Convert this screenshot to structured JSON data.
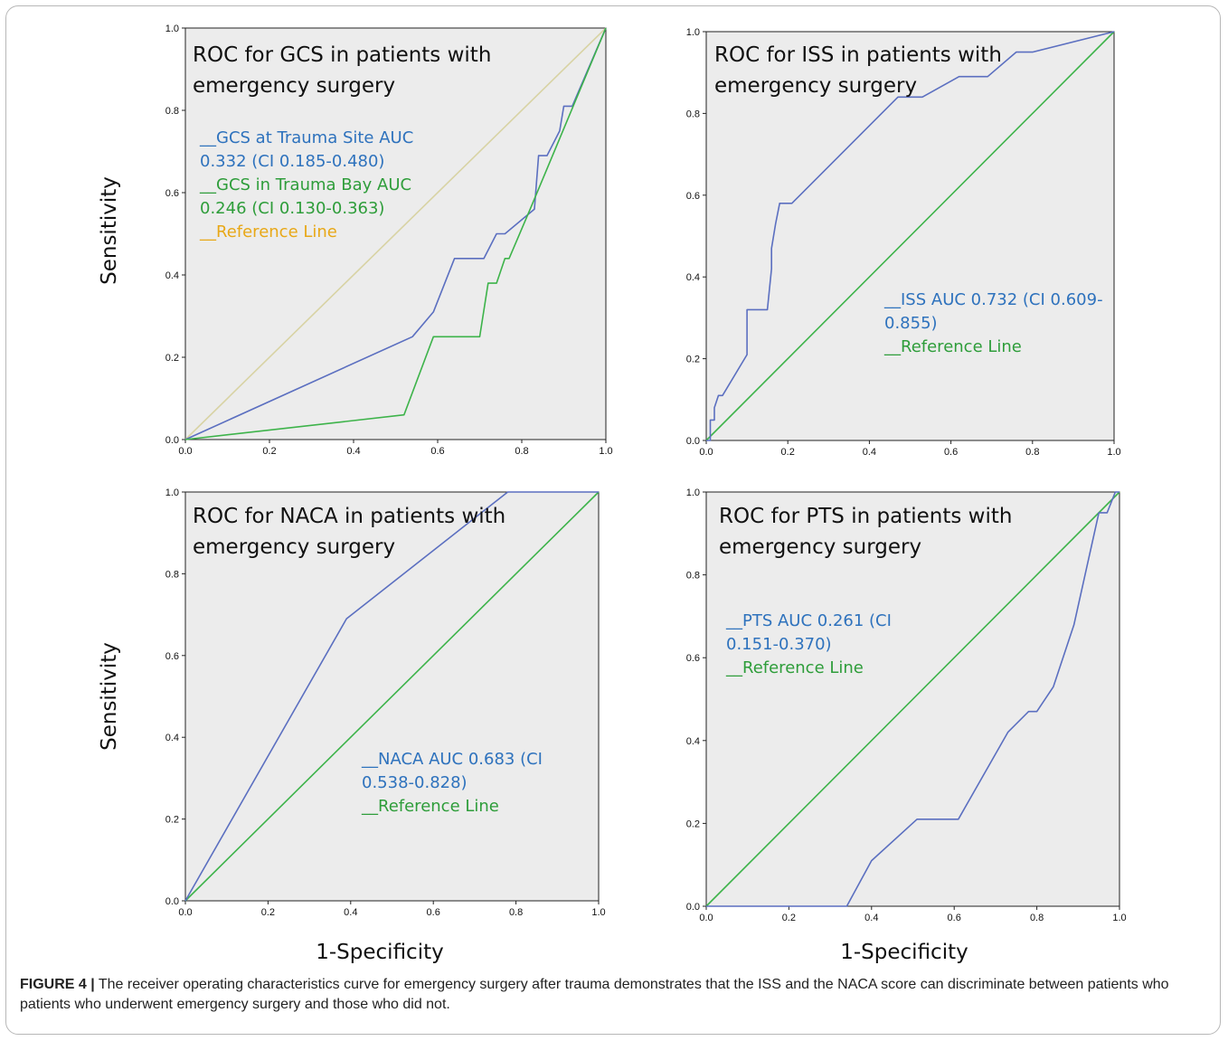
{
  "caption": {
    "label": "FIGURE 4 |",
    "text": "The receiver operating characteristics curve for emergency surgery after trauma demonstrates that the ISS and the NACA score can discriminate between patients who patients who underwent emergency surgery and those who did not."
  },
  "colors": {
    "blue_series": "#5b6fc0",
    "green_series": "#3db34a",
    "reference_beige": "#d8d3a4",
    "legend_blue_text": "#2e72bd",
    "legend_green_text": "#2e9d3a",
    "legend_orange_text": "#e8a817",
    "plot_background": "#ececec"
  },
  "chart_data": [
    {
      "type": "line",
      "title_lines": [
        "ROC for GCS in patients with",
        "emergency surgery"
      ],
      "xlabel": "",
      "ylabel": "Sensitivity",
      "xlim": [
        0,
        1
      ],
      "ylim": [
        0,
        1
      ],
      "xticks": [
        "0.0",
        "0.2",
        "0.4",
        "0.6",
        "0.8",
        "1.0"
      ],
      "yticks": [
        "0.0",
        "0.2",
        "0.4",
        "0.6",
        "0.8",
        "1.0"
      ],
      "grid": false,
      "series": [
        {
          "name": "GCS at Trauma Site",
          "color": "#5b6fc0",
          "points": [
            [
              0,
              0
            ],
            [
              0.54,
              0.25
            ],
            [
              0.59,
              0.31
            ],
            [
              0.64,
              0.44
            ],
            [
              0.71,
              0.44
            ],
            [
              0.74,
              0.5
            ],
            [
              0.76,
              0.5
            ],
            [
              0.83,
              0.56
            ],
            [
              0.84,
              0.69
            ],
            [
              0.86,
              0.69
            ],
            [
              0.89,
              0.75
            ],
            [
              0.9,
              0.81
            ],
            [
              0.92,
              0.81
            ],
            [
              1,
              1
            ]
          ]
        },
        {
          "name": "GCS in Trauma Bay",
          "color": "#3db34a",
          "points": [
            [
              0,
              0
            ],
            [
              0.52,
              0.06
            ],
            [
              0.59,
              0.25
            ],
            [
              0.7,
              0.25
            ],
            [
              0.72,
              0.38
            ],
            [
              0.74,
              0.38
            ],
            [
              0.76,
              0.44
            ],
            [
              0.77,
              0.44
            ],
            [
              0.82,
              0.56
            ],
            [
              1,
              1
            ]
          ]
        },
        {
          "name": "Reference Line",
          "color": "#d8d3a4",
          "points": [
            [
              0,
              0
            ],
            [
              1,
              1
            ]
          ]
        }
      ],
      "legend": [
        {
          "lines": [
            "__GCS at  Trauma Site AUC",
            "0.332 (CI 0.185-0.480)"
          ],
          "color": "#2e72bd"
        },
        {
          "lines": [
            "__GCS in Trauma Bay AUC",
            "0.246 (CI 0.130-0.363)"
          ],
          "color": "#2e9d3a"
        },
        {
          "lines": [
            "__Reference Line"
          ],
          "color": "#e8a817"
        }
      ]
    },
    {
      "type": "line",
      "title_lines": [
        "ROC for ISS in patients with",
        "emergency surgery"
      ],
      "xlabel": "",
      "ylabel": "",
      "xlim": [
        0,
        1
      ],
      "ylim": [
        0,
        1
      ],
      "xticks": [
        "0.0",
        "0.2",
        "0.4",
        "0.6",
        "0.8",
        "1.0"
      ],
      "yticks": [
        "0.0",
        "0.2",
        "0.4",
        "0.6",
        "0.8",
        "1.0"
      ],
      "grid": false,
      "series": [
        {
          "name": "ISS",
          "color": "#5b6fc0",
          "points": [
            [
              0,
              0
            ],
            [
              0.01,
              0
            ],
            [
              0.01,
              0.05
            ],
            [
              0.02,
              0.05
            ],
            [
              0.02,
              0.08
            ],
            [
              0.03,
              0.11
            ],
            [
              0.04,
              0.11
            ],
            [
              0.1,
              0.21
            ],
            [
              0.1,
              0.32
            ],
            [
              0.15,
              0.32
            ],
            [
              0.16,
              0.42
            ],
            [
              0.16,
              0.47
            ],
            [
              0.17,
              0.53
            ],
            [
              0.18,
              0.58
            ],
            [
              0.21,
              0.58
            ],
            [
              0.47,
              0.84
            ],
            [
              0.53,
              0.84
            ],
            [
              0.62,
              0.89
            ],
            [
              0.69,
              0.89
            ],
            [
              0.76,
              0.95
            ],
            [
              0.8,
              0.95
            ],
            [
              1,
              1
            ]
          ]
        },
        {
          "name": "Reference Line",
          "color": "#3db34a",
          "points": [
            [
              0,
              0
            ],
            [
              1,
              1
            ]
          ]
        }
      ],
      "legend": [
        {
          "lines": [
            "__ISS AUC 0.732 (CI 0.609-",
            "0.855)"
          ],
          "color": "#2e72bd"
        },
        {
          "lines": [
            "__Reference Line"
          ],
          "color": "#2e9d3a"
        }
      ]
    },
    {
      "type": "line",
      "title_lines": [
        "ROC for NACA in patients with",
        "emergency surgery"
      ],
      "xlabel": "1-Specificity",
      "ylabel": "Sensitivity",
      "xlim": [
        0,
        1
      ],
      "ylim": [
        0,
        1
      ],
      "xticks": [
        "0.0",
        "0.2",
        "0.4",
        "0.6",
        "0.8",
        "1.0"
      ],
      "yticks": [
        "0.0",
        "0.2",
        "0.4",
        "0.6",
        "0.8",
        "1.0"
      ],
      "grid": false,
      "series": [
        {
          "name": "NACA",
          "color": "#5b6fc0",
          "points": [
            [
              0,
              0
            ],
            [
              0.39,
              0.69
            ],
            [
              0.78,
              1
            ],
            [
              1,
              1
            ]
          ]
        },
        {
          "name": "Reference Line",
          "color": "#3db34a",
          "points": [
            [
              0,
              0
            ],
            [
              1,
              1
            ]
          ]
        }
      ],
      "legend": [
        {
          "lines": [
            "__NACA AUC 0.683 (CI",
            "0.538-0.828)"
          ],
          "color": "#2e72bd"
        },
        {
          "lines": [
            "__Reference Line"
          ],
          "color": "#2e9d3a"
        }
      ]
    },
    {
      "type": "line",
      "title_lines": [
        "ROC for PTS in patients with",
        "emergency surgery"
      ],
      "xlabel": "1-Specificity",
      "ylabel": "",
      "xlim": [
        0,
        1
      ],
      "ylim": [
        0,
        1
      ],
      "xticks": [
        "0.0",
        "0.2",
        "0.4",
        "0.6",
        "0.8",
        "1.0"
      ],
      "yticks": [
        "0.0",
        "0.2",
        "0.4",
        "0.6",
        "0.8",
        "1.0"
      ],
      "grid": false,
      "series": [
        {
          "name": "PTS",
          "color": "#5b6fc0",
          "points": [
            [
              0,
              0
            ],
            [
              0.34,
              0
            ],
            [
              0.4,
              0.11
            ],
            [
              0.51,
              0.21
            ],
            [
              0.61,
              0.21
            ],
            [
              0.73,
              0.42
            ],
            [
              0.78,
              0.47
            ],
            [
              0.8,
              0.47
            ],
            [
              0.84,
              0.53
            ],
            [
              0.89,
              0.68
            ],
            [
              0.95,
              0.95
            ],
            [
              0.97,
              0.95
            ],
            [
              0.99,
              1
            ],
            [
              1,
              1
            ]
          ]
        },
        {
          "name": "Reference Line",
          "color": "#3db34a",
          "points": [
            [
              0,
              0
            ],
            [
              1,
              1
            ]
          ]
        }
      ],
      "legend": [
        {
          "lines": [
            "__PTS AUC 0.261 (CI",
            "0.151-0.370)"
          ],
          "color": "#2e72bd"
        },
        {
          "lines": [
            "__Reference Line"
          ],
          "color": "#2e9d3a"
        }
      ]
    }
  ]
}
